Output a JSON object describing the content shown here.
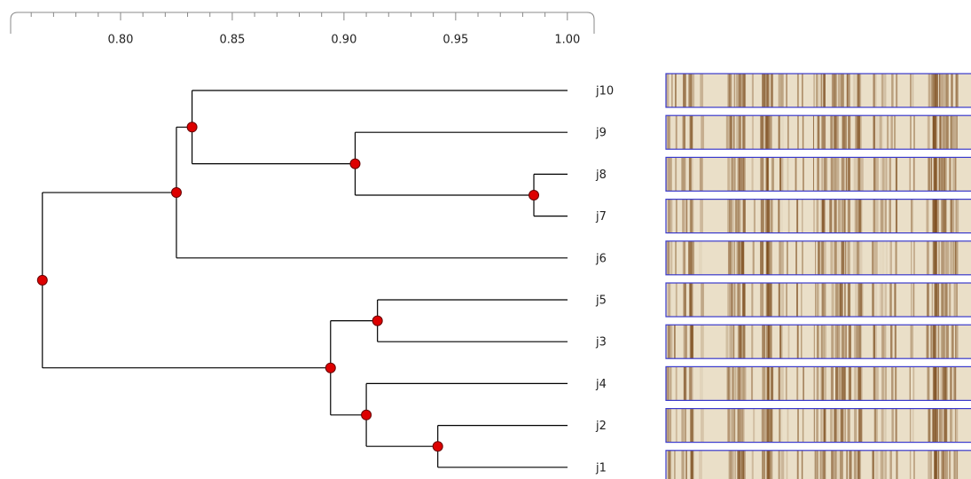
{
  "chart_data": {
    "type": "dendrogram",
    "xlim": [
      0.75,
      1.01
    ],
    "xticks": [
      {
        "value": 0.8,
        "label": "0.80"
      },
      {
        "value": 0.85,
        "label": "0.85"
      },
      {
        "value": 0.9,
        "label": "0.90"
      },
      {
        "value": 0.95,
        "label": "0.95"
      },
      {
        "value": 1.0,
        "label": "1.00"
      }
    ],
    "minor_xticks": [
      0.76,
      0.77,
      0.78,
      0.79,
      0.81,
      0.82,
      0.83,
      0.84,
      0.86,
      0.87,
      0.88,
      0.89,
      0.91,
      0.92,
      0.93,
      0.94,
      0.96,
      0.97,
      0.98,
      0.99
    ],
    "leaves": [
      "j10",
      "j9",
      "j8",
      "j7",
      "j6",
      "j5",
      "j3",
      "j4",
      "j2",
      "j1"
    ],
    "nodes": [
      {
        "children": [
          2,
          3
        ],
        "value": 0.985
      },
      {
        "children": [
          1,
          10
        ],
        "value": 0.905
      },
      {
        "children": [
          0,
          11
        ],
        "value": 0.832
      },
      {
        "children": [
          12,
          4
        ],
        "value": 0.825
      },
      {
        "children": [
          5,
          6
        ],
        "value": 0.915
      },
      {
        "children": [
          8,
          9
        ],
        "value": 0.942
      },
      {
        "children": [
          7,
          15
        ],
        "value": 0.91
      },
      {
        "children": [
          14,
          16
        ],
        "value": 0.894
      },
      {
        "children": [
          13,
          17
        ],
        "value": 0.765
      }
    ],
    "node_color": "#dd0000",
    "line_color": "#000000"
  }
}
